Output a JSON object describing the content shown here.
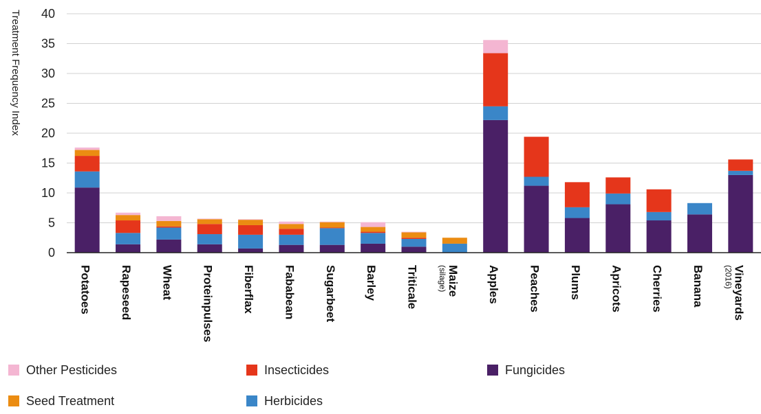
{
  "chart_data": {
    "type": "bar",
    "stacked": true,
    "ylabel": "Treatment Frequency Index",
    "ylim": [
      0,
      40
    ],
    "yticks": [
      0,
      5,
      10,
      15,
      20,
      25,
      30,
      35,
      40
    ],
    "grid": true,
    "legend_position": "bottom",
    "categories": [
      {
        "label": "Potatoes",
        "sub": ""
      },
      {
        "label": "Rapeseed",
        "sub": ""
      },
      {
        "label": "Wheat",
        "sub": ""
      },
      {
        "label": "Proteinpulses",
        "sub": ""
      },
      {
        "label": "Fiberflax",
        "sub": ""
      },
      {
        "label": "Fababean",
        "sub": ""
      },
      {
        "label": "Sugarbeet",
        "sub": ""
      },
      {
        "label": "Barley",
        "sub": ""
      },
      {
        "label": "Triticale",
        "sub": ""
      },
      {
        "label": "Maize",
        "sub": "(silage)"
      },
      {
        "label": "Apples",
        "sub": ""
      },
      {
        "label": "Peaches",
        "sub": ""
      },
      {
        "label": "Plums",
        "sub": ""
      },
      {
        "label": "Apricots",
        "sub": ""
      },
      {
        "label": "Cherries",
        "sub": ""
      },
      {
        "label": "Banana",
        "sub": ""
      },
      {
        "label": "Vineyards",
        "sub": "(2016)"
      }
    ],
    "series": [
      {
        "name": "Fungicides",
        "color": "#4a2066",
        "values": [
          10.9,
          1.4,
          2.2,
          1.4,
          0.7,
          1.3,
          1.3,
          1.5,
          1.0,
          0.0,
          22.2,
          11.2,
          5.8,
          8.1,
          5.4,
          6.4,
          13.0
        ]
      },
      {
        "name": "Herbicides",
        "color": "#3a86c8",
        "values": [
          2.7,
          1.9,
          2.0,
          1.7,
          2.3,
          1.7,
          2.8,
          1.8,
          1.3,
          1.5,
          2.3,
          1.5,
          1.8,
          1.8,
          1.4,
          1.9,
          0.7
        ]
      },
      {
        "name": "Insecticides",
        "color": "#e5361b",
        "values": [
          2.6,
          2.1,
          0.2,
          1.7,
          1.6,
          1.0,
          0.1,
          0.2,
          0.2,
          0.0,
          8.9,
          6.7,
          4.2,
          2.7,
          3.8,
          0.0,
          1.9
        ]
      },
      {
        "name": "Seed Treatment",
        "color": "#eb8c12",
        "values": [
          1.0,
          0.9,
          0.9,
          0.8,
          0.9,
          0.8,
          0.9,
          0.8,
          0.9,
          1.0,
          0.0,
          0.0,
          0.0,
          0.0,
          0.0,
          0.0,
          0.0
        ]
      },
      {
        "name": "Other Pesticides",
        "color": "#f4b6d2",
        "values": [
          0.4,
          0.4,
          0.8,
          0.1,
          0.1,
          0.4,
          0.1,
          0.8,
          0.1,
          0.0,
          2.2,
          0.0,
          0.0,
          0.0,
          0.0,
          0.0,
          0.0
        ]
      }
    ],
    "legend": [
      {
        "name": "Other Pesticides",
        "color": "#f4b6d2"
      },
      {
        "name": "Insecticides",
        "color": "#e5361b"
      },
      {
        "name": "Fungicides",
        "color": "#4a2066"
      },
      {
        "name": "Seed Treatment",
        "color": "#eb8c12"
      },
      {
        "name": "Herbicides",
        "color": "#3a86c8"
      }
    ]
  }
}
